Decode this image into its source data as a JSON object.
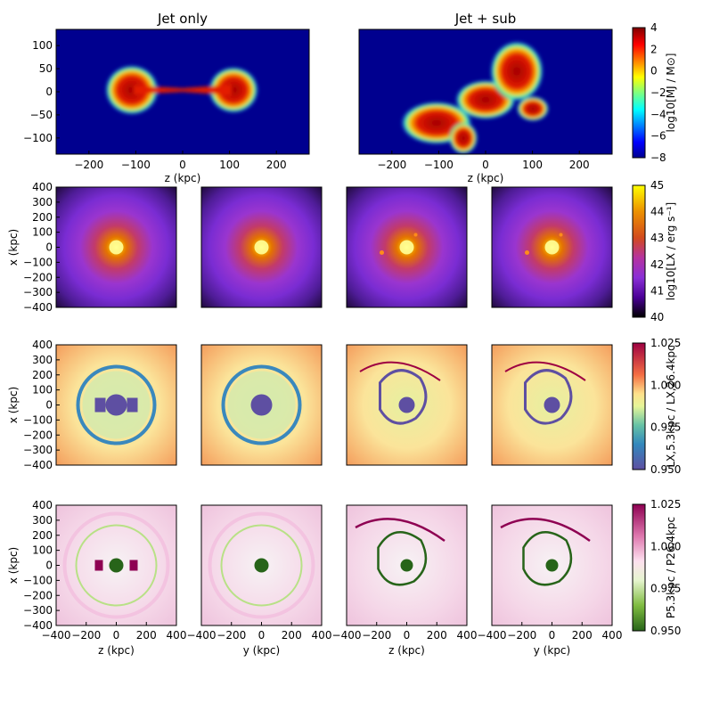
{
  "chart_data": [
    {
      "type": "heatmap",
      "row": "jet-mass",
      "columns": [
        {
          "title": "Jet only",
          "xlabel": "z (kpc)",
          "x_ticks": [
            "−200",
            "−100",
            "0",
            "100",
            "200"
          ],
          "y_ticks": [
            "100",
            "50",
            "0",
            "−50",
            "−100"
          ]
        },
        {
          "title": "Jet + sub",
          "xlabel": "z (kpc)",
          "x_ticks": [
            "−200",
            "−100",
            "0",
            "100",
            "200"
          ],
          "y_ticks": []
        }
      ],
      "xlim": [
        -270,
        270
      ],
      "ylim": [
        -135,
        135
      ],
      "colorbar": {
        "label": "log10[MJ / M⊙]",
        "ticks": [
          "4",
          "2",
          "0",
          "−2",
          "−4",
          "−6",
          "−8"
        ],
        "range": [
          -8,
          4
        ],
        "cmap": "jet"
      }
    },
    {
      "type": "heatmap",
      "row": "xray-luminosity",
      "panels": 4,
      "ylabel": "x (kpc)",
      "y_ticks": [
        "400",
        "300",
        "200",
        "100",
        "0",
        "−100",
        "−200",
        "−300",
        "−400"
      ],
      "xlim": [
        -400,
        400
      ],
      "ylim": [
        -400,
        400
      ],
      "colorbar": {
        "label": "log10[LX / erg s⁻¹]",
        "ticks": [
          "45",
          "44",
          "43",
          "42",
          "41",
          "40"
        ],
        "range": [
          40,
          45
        ],
        "cmap": "gnuplot"
      }
    },
    {
      "type": "heatmap",
      "row": "luminosity-ratio",
      "panels": 4,
      "ylabel": "x (kpc)",
      "y_ticks": [
        "400",
        "300",
        "200",
        "100",
        "0",
        "−100",
        "−200",
        "−300",
        "−400"
      ],
      "xlim": [
        -400,
        400
      ],
      "ylim": [
        -400,
        400
      ],
      "colorbar": {
        "label": "LX,5.3kpc / LX,26.4kpc",
        "ticks": [
          "1.025",
          "1.000",
          "0.975",
          "0.950"
        ],
        "range": [
          0.95,
          1.025
        ],
        "cmap": "Spectral"
      }
    },
    {
      "type": "heatmap",
      "row": "pressure-ratio",
      "panels": 4,
      "ylabel": "x (kpc)",
      "y_ticks": [
        "400",
        "300",
        "200",
        "100",
        "0",
        "−100",
        "−200",
        "−300",
        "−400"
      ],
      "x_ticks": [
        "−400",
        "−200",
        "0",
        "200",
        "400"
      ],
      "xlabels": [
        "z (kpc)",
        "y (kpc)",
        "z (kpc)",
        "y (kpc)"
      ],
      "xlim": [
        -400,
        400
      ],
      "ylim": [
        -400,
        400
      ],
      "colorbar": {
        "label": "P5.3kpc / P26.4kpc",
        "ticks": [
          "1.025",
          "1.000",
          "0.975",
          "0.950"
        ],
        "range": [
          0.95,
          1.025
        ],
        "cmap": "PiYG"
      }
    }
  ],
  "colors": {
    "background_dark": "#00008f",
    "axis": "#000000"
  }
}
